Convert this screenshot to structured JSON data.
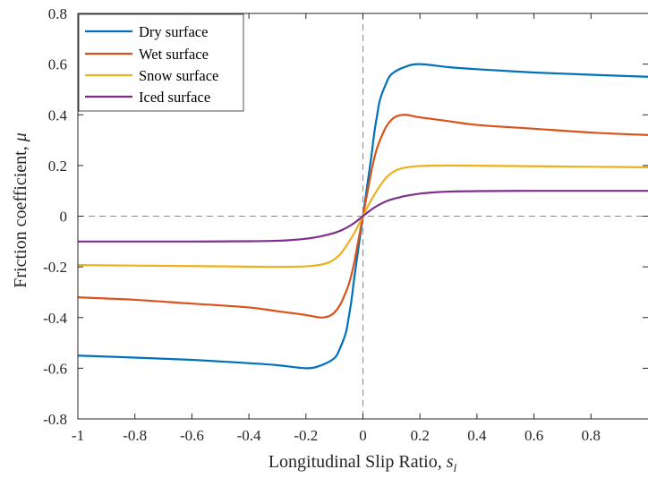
{
  "chart_data": {
    "type": "line",
    "title": "",
    "xlabel": "Longitudinal Slip Ratio, ",
    "xlabel_symbol": "s",
    "xlabel_subscript": "l",
    "ylabel": "Friction coefficient, ",
    "ylabel_symbol": "μ",
    "xlim": [
      -1,
      1
    ],
    "ylim": [
      -0.8,
      0.8
    ],
    "xticks": [
      -1,
      -0.8,
      -0.6,
      -0.4,
      -0.2,
      0,
      0.2,
      0.4,
      0.6,
      0.8
    ],
    "xtick_labels": [
      "-1",
      "-0.8",
      "-0.6",
      "-0.4",
      "-0.2",
      "0",
      "0.2",
      "0.4",
      "0.6",
      "0.8"
    ],
    "yticks": [
      -0.8,
      -0.6,
      -0.4,
      -0.2,
      0,
      0.2,
      0.4,
      0.6,
      0.8
    ],
    "ytick_labels": [
      "-0.8",
      "-0.6",
      "-0.4",
      "-0.2",
      "0",
      "0.2",
      "0.4",
      "0.6",
      "0.8"
    ],
    "grid": false,
    "legend_position": "top-left",
    "reference_lines": [
      "x=0 dashed",
      "y=0 dashed"
    ],
    "series": [
      {
        "name": "Dry surface",
        "color": "#0072BD",
        "x": [
          -1,
          -0.8,
          -0.6,
          -0.4,
          -0.3,
          -0.2,
          -0.15,
          -0.1,
          -0.08,
          -0.06,
          -0.05,
          -0.04,
          -0.03,
          -0.02,
          -0.01,
          0,
          0.01,
          0.02,
          0.03,
          0.04,
          0.05,
          0.06,
          0.08,
          0.1,
          0.15,
          0.2,
          0.3,
          0.4,
          0.6,
          0.8,
          1
        ],
        "y": [
          -0.55,
          -0.558,
          -0.567,
          -0.58,
          -0.588,
          -0.6,
          -0.59,
          -0.56,
          -0.52,
          -0.46,
          -0.4,
          -0.33,
          -0.24,
          -0.16,
          -0.08,
          0,
          0.08,
          0.16,
          0.24,
          0.33,
          0.4,
          0.46,
          0.52,
          0.56,
          0.59,
          0.6,
          0.588,
          0.58,
          0.567,
          0.558,
          0.55
        ]
      },
      {
        "name": "Wet surface",
        "color": "#D95319",
        "x": [
          -1,
          -0.8,
          -0.6,
          -0.4,
          -0.3,
          -0.2,
          -0.15,
          -0.12,
          -0.1,
          -0.08,
          -0.06,
          -0.05,
          -0.04,
          -0.03,
          -0.02,
          -0.01,
          0,
          0.01,
          0.02,
          0.03,
          0.04,
          0.05,
          0.06,
          0.08,
          0.1,
          0.12,
          0.15,
          0.2,
          0.3,
          0.4,
          0.6,
          0.8,
          1
        ],
        "y": [
          -0.32,
          -0.33,
          -0.345,
          -0.36,
          -0.375,
          -0.39,
          -0.4,
          -0.395,
          -0.38,
          -0.35,
          -0.3,
          -0.27,
          -0.23,
          -0.18,
          -0.12,
          -0.06,
          0,
          0.06,
          0.12,
          0.18,
          0.23,
          0.27,
          0.3,
          0.35,
          0.38,
          0.395,
          0.4,
          0.39,
          0.375,
          0.36,
          0.345,
          0.33,
          0.32
        ]
      },
      {
        "name": "Snow surface",
        "color": "#EDB120",
        "x": [
          -1,
          -0.8,
          -0.6,
          -0.4,
          -0.3,
          -0.2,
          -0.15,
          -0.12,
          -0.1,
          -0.08,
          -0.06,
          -0.04,
          -0.02,
          0,
          0.02,
          0.04,
          0.06,
          0.08,
          0.1,
          0.12,
          0.15,
          0.2,
          0.3,
          0.4,
          0.6,
          0.8,
          1
        ],
        "y": [
          -0.193,
          -0.195,
          -0.197,
          -0.199,
          -0.2,
          -0.198,
          -0.192,
          -0.183,
          -0.17,
          -0.15,
          -0.12,
          -0.085,
          -0.045,
          0,
          0.045,
          0.085,
          0.12,
          0.15,
          0.17,
          0.183,
          0.192,
          0.198,
          0.2,
          0.199,
          0.197,
          0.195,
          0.193
        ]
      },
      {
        "name": "Iced surface",
        "color": "#7E2F8E",
        "x": [
          -1,
          -0.8,
          -0.6,
          -0.4,
          -0.3,
          -0.25,
          -0.2,
          -0.15,
          -0.12,
          -0.1,
          -0.08,
          -0.06,
          -0.04,
          -0.02,
          0,
          0.02,
          0.04,
          0.06,
          0.08,
          0.1,
          0.12,
          0.15,
          0.2,
          0.25,
          0.3,
          0.4,
          0.6,
          0.8,
          1
        ],
        "y": [
          -0.1,
          -0.1,
          -0.1,
          -0.099,
          -0.097,
          -0.094,
          -0.089,
          -0.08,
          -0.072,
          -0.066,
          -0.058,
          -0.047,
          -0.034,
          -0.018,
          0,
          0.018,
          0.034,
          0.047,
          0.058,
          0.066,
          0.072,
          0.08,
          0.089,
          0.094,
          0.097,
          0.099,
          0.1,
          0.1,
          0.1
        ]
      }
    ]
  }
}
